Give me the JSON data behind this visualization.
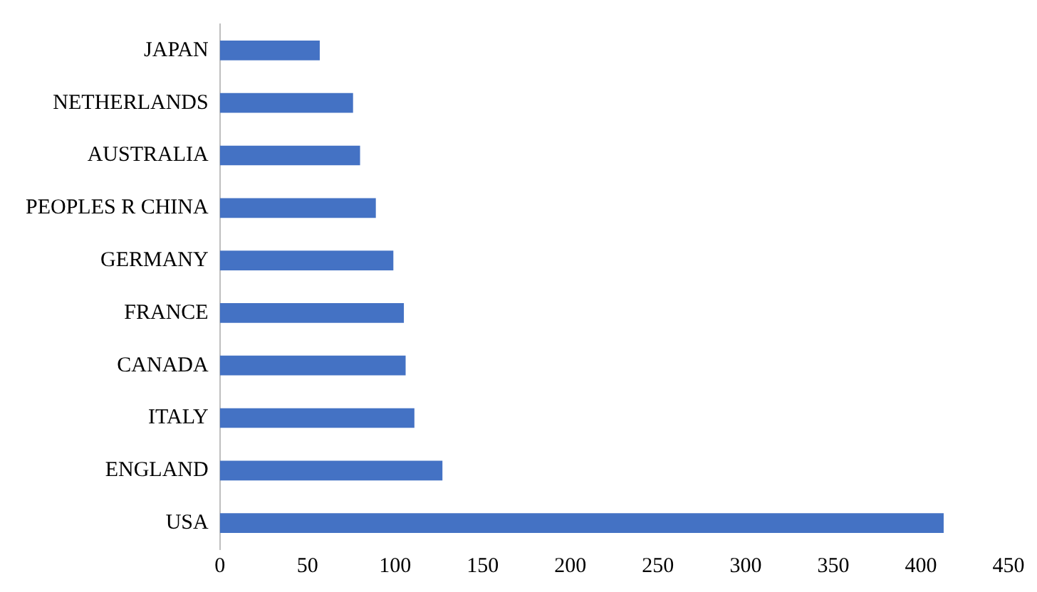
{
  "chart_data": {
    "type": "bar",
    "orientation": "horizontal",
    "categories": [
      "JAPAN",
      "NETHERLANDS",
      "AUSTRALIA",
      "PEOPLES R CHINA",
      "GERMANY",
      "FRANCE",
      "CANADA",
      "ITALY",
      "ENGLAND",
      "USA"
    ],
    "values": [
      57,
      76,
      80,
      89,
      99,
      105,
      106,
      111,
      127,
      413
    ],
    "color": "#4472c4",
    "xlim": [
      0,
      450
    ],
    "xticks": [
      0,
      50,
      100,
      150,
      200,
      250,
      300,
      350,
      400,
      450
    ],
    "grid": false,
    "legend": false
  }
}
